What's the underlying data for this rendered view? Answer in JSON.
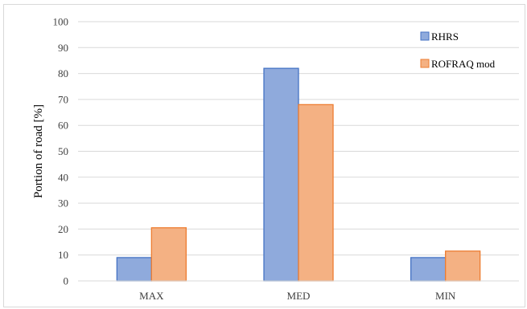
{
  "chart_data": {
    "type": "bar",
    "categories": [
      "MAX",
      "MED",
      "MIN"
    ],
    "series": [
      {
        "name": "RHRS",
        "values": [
          9,
          82,
          9
        ],
        "fill": "#8faadc",
        "stroke": "#4472c4"
      },
      {
        "name": "ROFRAQ mod",
        "values": [
          20.5,
          68,
          11.5
        ],
        "fill": "#f4b183",
        "stroke": "#ed7d31"
      }
    ],
    "title": "",
    "xlabel": "",
    "ylabel": "Portion of road [%]",
    "ylim": [
      0,
      100
    ],
    "yticks": [
      0,
      10,
      20,
      30,
      40,
      50,
      60,
      70,
      80,
      90,
      100
    ],
    "grid": true,
    "gridColor": "#d9d9d9",
    "legend": "top-right"
  }
}
